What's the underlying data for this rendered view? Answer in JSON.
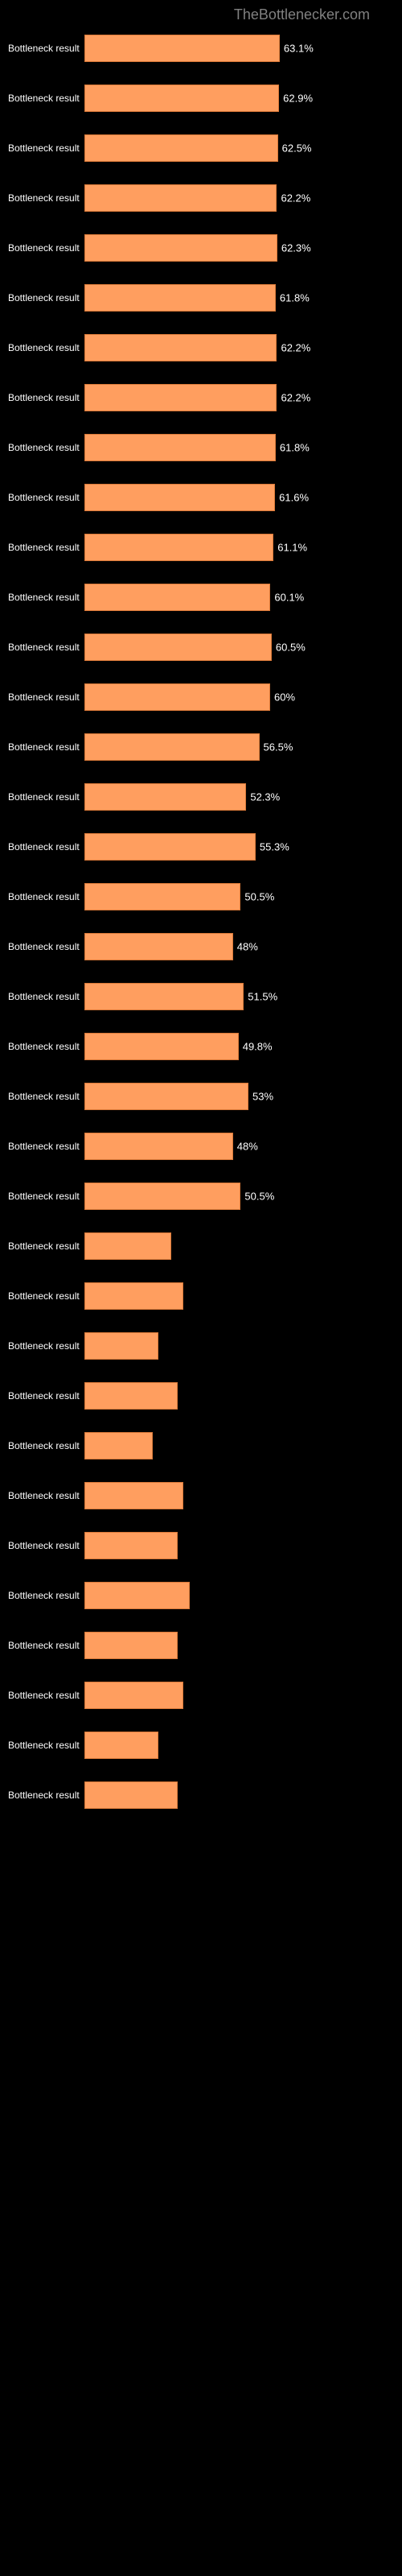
{
  "header": {
    "title": "TheBottlenecker.com"
  },
  "chart": {
    "type": "bar",
    "orientation": "horizontal",
    "background_color": "#000000",
    "bar_color": "#ff9e5f",
    "bar_border_color": "#d97838",
    "label_color": "#ffffff",
    "category_label_color": "#808080",
    "header_color": "#808080",
    "max_value": 100,
    "axis_label": "Bottleneck result",
    "label_threshold_for_outside": 44,
    "bars": [
      {
        "category": "",
        "value": 63.1,
        "display": "63.1%"
      },
      {
        "category": "",
        "value": 62.9,
        "display": "62.9%"
      },
      {
        "category": "",
        "value": 62.5,
        "display": "62.5%"
      },
      {
        "category": "",
        "value": 62.2,
        "display": "62.2%"
      },
      {
        "category": "",
        "value": 62.3,
        "display": "62.3%"
      },
      {
        "category": "",
        "value": 61.8,
        "display": "61.8%"
      },
      {
        "category": "",
        "value": 62.2,
        "display": "62.2%"
      },
      {
        "category": "",
        "value": 62.2,
        "display": "62.2%"
      },
      {
        "category": "",
        "value": 61.8,
        "display": "61.8%"
      },
      {
        "category": "",
        "value": 61.6,
        "display": "61.6%"
      },
      {
        "category": "",
        "value": 61.1,
        "display": "61.1%"
      },
      {
        "category": "",
        "value": 60.1,
        "display": "60.1%"
      },
      {
        "category": "",
        "value": 60.5,
        "display": "60.5%"
      },
      {
        "category": "",
        "value": 60.0,
        "display": "60%"
      },
      {
        "category": "",
        "value": 56.5,
        "display": "56.5%"
      },
      {
        "category": "",
        "value": 52.3,
        "display": "52.3%"
      },
      {
        "category": "",
        "value": 55.3,
        "display": "55.3%"
      },
      {
        "category": "",
        "value": 50.5,
        "display": "50.5%"
      },
      {
        "category": "",
        "value": 48.0,
        "display": "48%"
      },
      {
        "category": "",
        "value": 51.5,
        "display": "51.5%"
      },
      {
        "category": "",
        "value": 49.8,
        "display": "49.8%"
      },
      {
        "category": "",
        "value": 53.0,
        "display": "53%"
      },
      {
        "category": "",
        "value": 48.0,
        "display": "48%"
      },
      {
        "category": "",
        "value": 50.5,
        "display": "50.5%"
      },
      {
        "category": "",
        "value": 28.0,
        "display": ""
      },
      {
        "category": "",
        "value": 32.0,
        "display": ""
      },
      {
        "category": "",
        "value": 24.0,
        "display": ""
      },
      {
        "category": "",
        "value": 30.0,
        "display": ""
      },
      {
        "category": "",
        "value": 22.0,
        "display": ""
      },
      {
        "category": "",
        "value": 32.0,
        "display": ""
      },
      {
        "category": "",
        "value": 30.0,
        "display": ""
      },
      {
        "category": "",
        "value": 34.0,
        "display": ""
      },
      {
        "category": "",
        "value": 30.0,
        "display": ""
      },
      {
        "category": "",
        "value": 32.0,
        "display": ""
      },
      {
        "category": "",
        "value": 24.0,
        "display": ""
      },
      {
        "category": "",
        "value": 30.0,
        "display": ""
      }
    ]
  }
}
